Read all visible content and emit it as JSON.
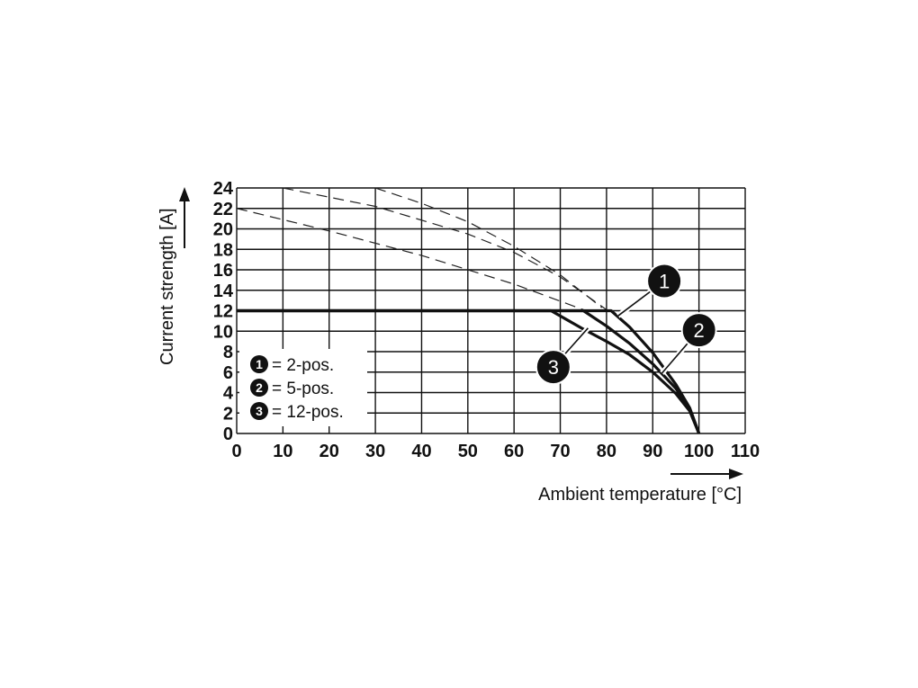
{
  "chart_data": {
    "type": "line",
    "xlabel": "Ambient temperature [°C]",
    "ylabel": "Current strength [A]",
    "xlim": [
      0,
      110
    ],
    "ylim": [
      0,
      24
    ],
    "xticks": [
      "0",
      "10",
      "20",
      "30",
      "40",
      "50",
      "60",
      "70",
      "80",
      "90",
      "100",
      "110"
    ],
    "yticks": [
      "0",
      "2",
      "4",
      "6",
      "8",
      "10",
      "12",
      "14",
      "16",
      "18",
      "20",
      "22",
      "24"
    ],
    "grid": true,
    "legend": [
      {
        "marker": "1",
        "text": "= 2-pos."
      },
      {
        "marker": "2",
        "text": "= 5-pos."
      },
      {
        "marker": "3",
        "text": "= 12-pos."
      }
    ],
    "legend_position": "bottom-left",
    "series": [
      {
        "marker": "1",
        "style": "solid",
        "x": [
          0,
          81,
          85,
          90,
          95,
          98,
          100
        ],
        "y": [
          12,
          12,
          10.4,
          7.9,
          4.8,
          2.5,
          0
        ]
      },
      {
        "marker": "2",
        "style": "solid",
        "x": [
          0,
          75,
          80,
          85,
          90,
          95,
          98,
          100
        ],
        "y": [
          12,
          12,
          10.5,
          8.8,
          6.8,
          4.4,
          2.4,
          0
        ]
      },
      {
        "marker": "3",
        "style": "solid",
        "x": [
          0,
          68,
          75,
          80,
          85,
          90,
          95,
          98,
          100
        ],
        "y": [
          12,
          12,
          10.2,
          9.0,
          7.7,
          6.0,
          3.9,
          2.2,
          0
        ]
      },
      {
        "style": "dashed",
        "x": [
          10,
          30,
          50,
          60,
          70,
          80
        ],
        "y": [
          24,
          22.2,
          19.5,
          17.7,
          15.3,
          12.1
        ]
      },
      {
        "style": "dashed",
        "x": [
          30,
          40,
          50,
          60,
          70,
          79
        ],
        "y": [
          24,
          22.5,
          20.7,
          18.3,
          15.5,
          12.3
        ]
      },
      {
        "style": "dashed",
        "x": [
          0,
          20,
          40,
          60,
          75
        ],
        "y": [
          22,
          19.8,
          17.4,
          14.6,
          12.1
        ]
      }
    ],
    "callouts": [
      {
        "marker": "1",
        "x": 92.5,
        "y": 14.9,
        "target_x": 82.5,
        "target_y": 11.5
      },
      {
        "marker": "2",
        "x": 100,
        "y": 10.1,
        "target_x": 92,
        "target_y": 5.9
      },
      {
        "marker": "3",
        "x": 68.5,
        "y": 6.5,
        "target_x": 76,
        "target_y": 10.3
      }
    ]
  }
}
